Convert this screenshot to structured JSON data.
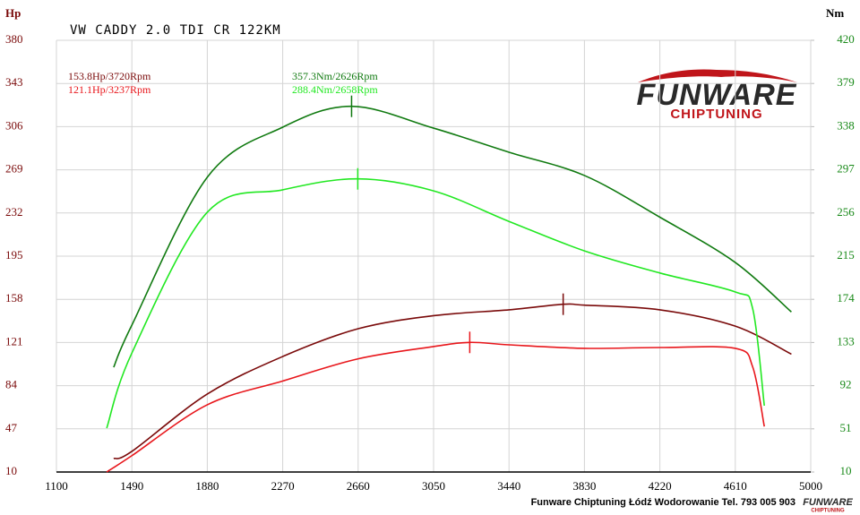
{
  "chart_data": {
    "type": "line",
    "title": "VW CADDY 2.0 TDI CR 122KM",
    "ylabel": "Hp",
    "y2label": "Nm",
    "xlim": [
      1100,
      5000
    ],
    "xticks": [
      1100,
      1490,
      1880,
      2270,
      2660,
      3050,
      3440,
      3830,
      4220,
      4610,
      5000
    ],
    "ylim": [
      10,
      380
    ],
    "yticks": [
      10,
      47,
      84,
      121,
      158,
      195,
      232,
      269,
      306,
      343,
      380
    ],
    "y2lim": [
      10,
      420
    ],
    "y2ticks": [
      10,
      51,
      92,
      133,
      174,
      215,
      256,
      297,
      338,
      379,
      420
    ],
    "grid": true,
    "left_axis_color": "#7a0a0a",
    "right_axis_color": "#1a8a1a",
    "series": [
      {
        "name": "153.8Hp/3720Rpm",
        "color": "#7a0a0a",
        "peak_index": 7,
        "x": [
          1396,
          1490,
          1880,
          2270,
          2660,
          3050,
          3440,
          3720,
          3830,
          4220,
          4610,
          4900
        ],
        "values": [
          21.5,
          27.7,
          76.8,
          109,
          132.8,
          144,
          149,
          153.8,
          153,
          149,
          135,
          111
        ]
      },
      {
        "name": "121.1Hp/3237Rpm",
        "color": "#e8161b",
        "peak_index": 6,
        "x": [
          1360,
          1490,
          1880,
          2270,
          2660,
          3050,
          3237,
          3440,
          3830,
          4220,
          4610,
          4700,
          4760
        ],
        "values": [
          10,
          24,
          67.6,
          88,
          107,
          117.5,
          121.1,
          119,
          116,
          116.7,
          116,
          100,
          49
        ]
      },
      {
        "name": "357.3Nm/2626Rpm",
        "color": "#107a10",
        "axis": "y2",
        "peak_index": 4,
        "x": [
          1396,
          1490,
          1880,
          2270,
          2626,
          3050,
          3440,
          3830,
          4220,
          4610,
          4900
        ],
        "values": [
          109.5,
          149.5,
          290,
          337.5,
          357.3,
          336.6,
          313.7,
          291.6,
          252,
          209,
          162
        ]
      },
      {
        "name": "288.4Nm/2658Rpm",
        "color": "#22e822",
        "axis": "y2",
        "peak_index": 4,
        "x": [
          1360,
          1490,
          1880,
          2270,
          2658,
          3050,
          3440,
          3830,
          4220,
          4610,
          4700,
          4760
        ],
        "values": [
          51.7,
          123,
          256.7,
          278,
          288.4,
          277,
          248,
          220,
          199,
          181,
          165,
          73
        ]
      }
    ]
  },
  "logo": {
    "name": "FUNWARE",
    "tagline": "CHIPTUNING"
  },
  "footer": "Funware Chiptuning Łódź Wodorowanie Tel. 793 005 903"
}
